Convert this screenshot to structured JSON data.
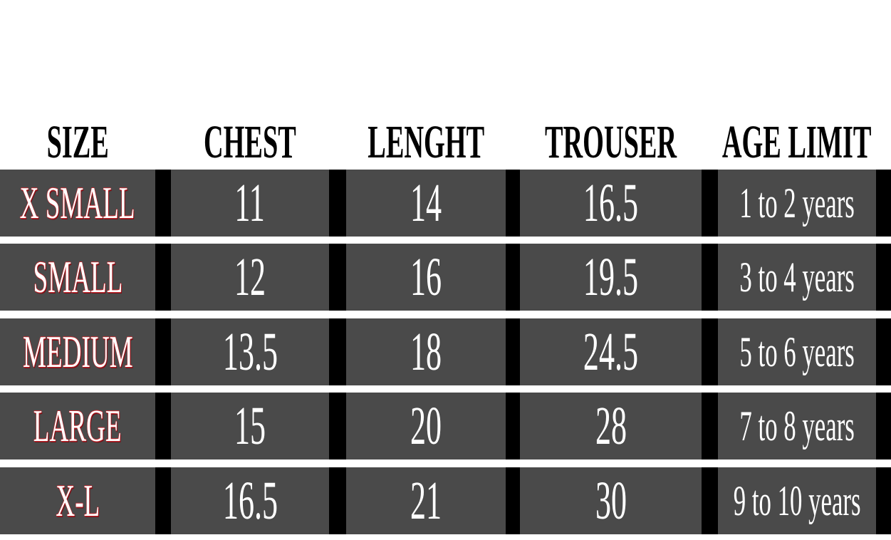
{
  "table": {
    "header": [
      "SIZE",
      "CHEST",
      "LENGHT",
      "TROUSER",
      "AGE LIMIT"
    ],
    "rows": [
      [
        "X SMALL",
        "11",
        "14",
        "16.5",
        "1 to 2 years"
      ],
      [
        "SMALL",
        "12",
        "16",
        "19.5",
        "3 to 4 years"
      ],
      [
        "MEDIUM",
        "13.5",
        "18",
        "24.5",
        "5 to 6 years"
      ],
      [
        "LARGE",
        "15",
        "20",
        "28",
        "7 to 8 years"
      ],
      [
        "X-L",
        "16.5",
        "21",
        "30",
        "9 to 10 years"
      ]
    ]
  }
}
